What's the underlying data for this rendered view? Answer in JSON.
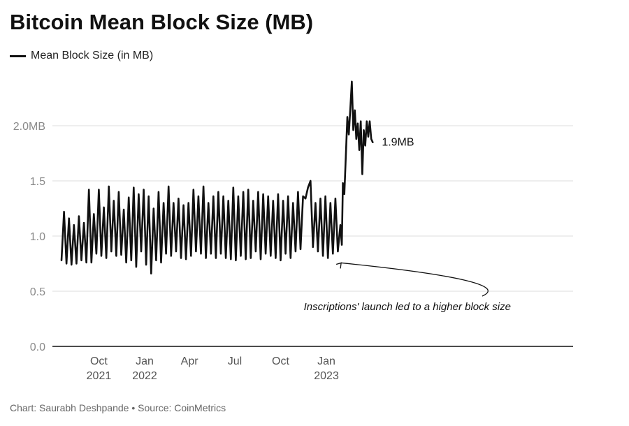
{
  "header": {
    "title": "Bitcoin Mean Block Size (MB)"
  },
  "footer": {
    "credit": "Chart: Saurabh Deshpande • Source: CoinMetrics"
  },
  "chart_data": {
    "type": "line",
    "title": "Bitcoin Mean Block Size (MB)",
    "xlabel": "",
    "ylabel": "",
    "ylim": [
      0,
      2.5
    ],
    "y_ticks": [
      {
        "value": 0.0,
        "label": "0.0"
      },
      {
        "value": 0.5,
        "label": "0.5"
      },
      {
        "value": 1.0,
        "label": "1.0"
      },
      {
        "value": 1.5,
        "label": "1.5"
      },
      {
        "value": 2.0,
        "label": "2.0MB"
      }
    ],
    "x_ticks": [
      {
        "date": "2021-10-01",
        "label": "Oct",
        "year": "2021"
      },
      {
        "date": "2022-01-01",
        "label": "Jan",
        "year": "2022"
      },
      {
        "date": "2022-04-01",
        "label": "Apr",
        "year": ""
      },
      {
        "date": "2022-07-01",
        "label": "Jul",
        "year": ""
      },
      {
        "date": "2022-10-01",
        "label": "Oct",
        "year": ""
      },
      {
        "date": "2023-01-01",
        "label": "Jan",
        "year": "2023"
      }
    ],
    "grid": true,
    "legend_position": "top-left",
    "color": "#111111",
    "series": [
      {
        "name": "Mean Block Size (in MB)",
        "x": [
          "2021-07-18",
          "2021-07-23",
          "2021-07-28",
          "2021-08-02",
          "2021-08-07",
          "2021-08-12",
          "2021-08-17",
          "2021-08-22",
          "2021-08-27",
          "2021-09-01",
          "2021-09-06",
          "2021-09-11",
          "2021-09-16",
          "2021-09-21",
          "2021-09-26",
          "2021-10-01",
          "2021-10-06",
          "2021-10-11",
          "2021-10-16",
          "2021-10-21",
          "2021-10-26",
          "2021-10-31",
          "2021-11-05",
          "2021-11-10",
          "2021-11-15",
          "2021-11-20",
          "2021-11-25",
          "2021-11-30",
          "2021-12-05",
          "2021-12-10",
          "2021-12-15",
          "2021-12-20",
          "2021-12-25",
          "2021-12-30",
          "2022-01-04",
          "2022-01-09",
          "2022-01-14",
          "2022-01-19",
          "2022-01-24",
          "2022-01-29",
          "2022-02-03",
          "2022-02-08",
          "2022-02-13",
          "2022-02-18",
          "2022-02-23",
          "2022-02-28",
          "2022-03-05",
          "2022-03-10",
          "2022-03-15",
          "2022-03-20",
          "2022-03-25",
          "2022-03-30",
          "2022-04-04",
          "2022-04-09",
          "2022-04-14",
          "2022-04-19",
          "2022-04-24",
          "2022-04-29",
          "2022-05-04",
          "2022-05-09",
          "2022-05-14",
          "2022-05-19",
          "2022-05-24",
          "2022-05-29",
          "2022-06-03",
          "2022-06-08",
          "2022-06-13",
          "2022-06-18",
          "2022-06-23",
          "2022-06-28",
          "2022-07-03",
          "2022-07-08",
          "2022-07-13",
          "2022-07-18",
          "2022-07-23",
          "2022-07-28",
          "2022-08-02",
          "2022-08-07",
          "2022-08-12",
          "2022-08-17",
          "2022-08-22",
          "2022-08-27",
          "2022-09-01",
          "2022-09-06",
          "2022-09-11",
          "2022-09-16",
          "2022-09-21",
          "2022-09-26",
          "2022-10-01",
          "2022-10-06",
          "2022-10-11",
          "2022-10-16",
          "2022-10-21",
          "2022-10-26",
          "2022-10-31",
          "2022-11-05",
          "2022-11-10",
          "2022-11-15",
          "2022-11-20",
          "2022-11-25",
          "2022-11-30",
          "2022-12-05",
          "2022-12-10",
          "2022-12-15",
          "2022-12-20",
          "2022-12-25",
          "2022-12-30",
          "2023-01-04",
          "2023-01-09",
          "2023-01-14",
          "2023-01-19",
          "2023-01-24",
          "2023-01-29",
          "2023-02-01",
          "2023-02-03",
          "2023-02-06",
          "2023-02-09",
          "2023-02-12",
          "2023-02-15",
          "2023-02-18",
          "2023-02-21",
          "2023-02-24",
          "2023-02-27",
          "2023-03-02",
          "2023-03-05",
          "2023-03-08",
          "2023-03-11",
          "2023-03-14",
          "2023-03-17",
          "2023-03-20",
          "2023-03-23",
          "2023-03-26",
          "2023-03-29",
          "2023-04-01",
          "2023-04-04"
        ],
        "values": [
          0.78,
          1.22,
          0.75,
          1.16,
          0.74,
          1.1,
          0.75,
          1.18,
          0.78,
          1.12,
          0.76,
          1.42,
          0.76,
          1.2,
          0.84,
          1.42,
          0.82,
          1.26,
          0.8,
          1.45,
          0.86,
          1.32,
          0.82,
          1.4,
          0.83,
          1.24,
          0.76,
          1.35,
          0.78,
          1.44,
          0.72,
          1.38,
          0.86,
          1.42,
          0.74,
          1.36,
          0.66,
          1.25,
          0.78,
          1.4,
          0.76,
          1.3,
          0.84,
          1.45,
          0.82,
          1.3,
          0.86,
          1.34,
          0.8,
          1.28,
          0.79,
          1.3,
          0.82,
          1.42,
          0.86,
          1.36,
          0.84,
          1.45,
          0.8,
          1.3,
          0.84,
          1.36,
          0.8,
          1.4,
          0.84,
          1.36,
          0.8,
          1.32,
          0.79,
          1.44,
          0.78,
          1.36,
          0.82,
          1.4,
          0.79,
          1.42,
          0.8,
          1.32,
          0.86,
          1.4,
          0.79,
          1.38,
          0.84,
          1.36,
          0.82,
          1.32,
          0.8,
          1.38,
          0.78,
          1.32,
          0.84,
          1.36,
          0.8,
          1.3,
          0.86,
          1.4,
          0.88,
          1.36,
          1.34,
          1.44,
          1.5,
          0.9,
          1.3,
          0.86,
          1.34,
          0.82,
          1.36,
          0.8,
          1.3,
          0.84,
          1.34,
          0.86,
          1.1,
          0.92,
          1.48,
          1.38,
          1.72,
          2.08,
          1.92,
          2.16,
          2.4,
          1.96,
          2.14,
          1.88,
          2.02,
          1.78,
          2.04,
          1.56,
          1.96,
          1.82,
          2.04,
          1.9,
          2.04,
          1.88,
          1.85
        ]
      }
    ],
    "end_label": "1.9MB",
    "annotation": {
      "text": "Inscriptions' launch led to a higher block size",
      "date": "2023-02-01",
      "value": 0.82
    }
  }
}
